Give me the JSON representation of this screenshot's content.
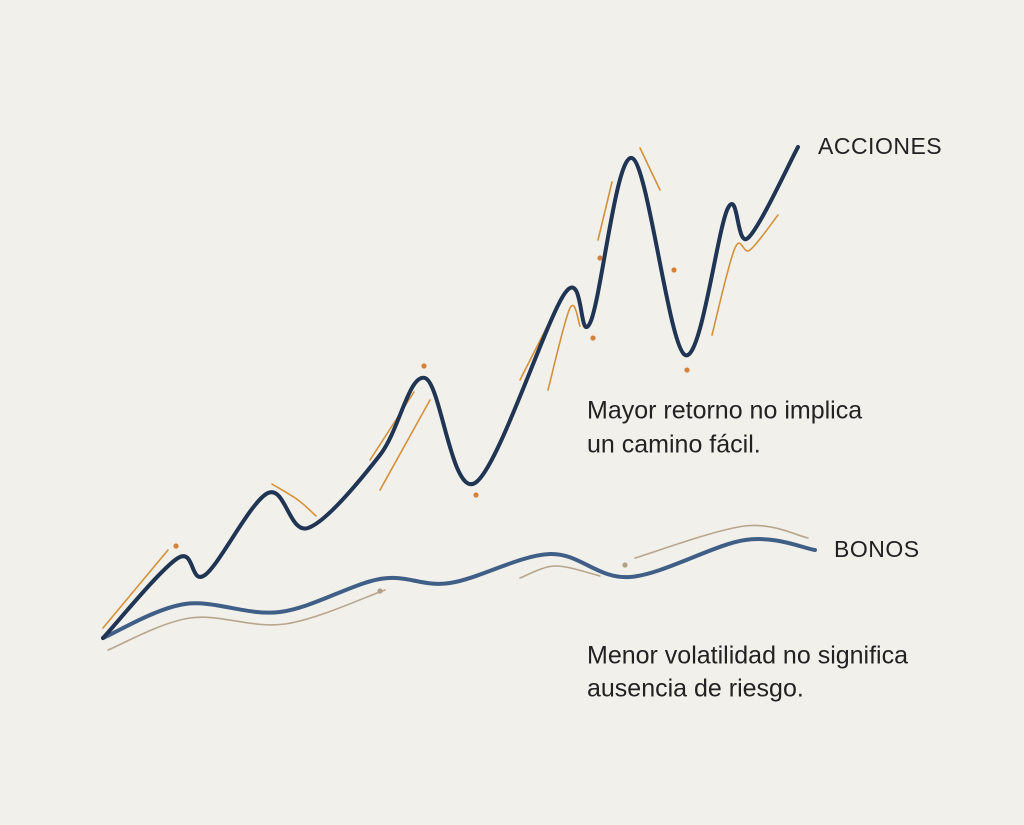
{
  "labels": {
    "stocks": "ACCIONES",
    "bonds": "BONOS"
  },
  "notes": {
    "stocks": [
      "Mayor retorno no implica",
      "un camino fácil."
    ],
    "bonds": [
      "Menor volatilidad no significa",
      "ausencia de riesgo."
    ]
  }
}
